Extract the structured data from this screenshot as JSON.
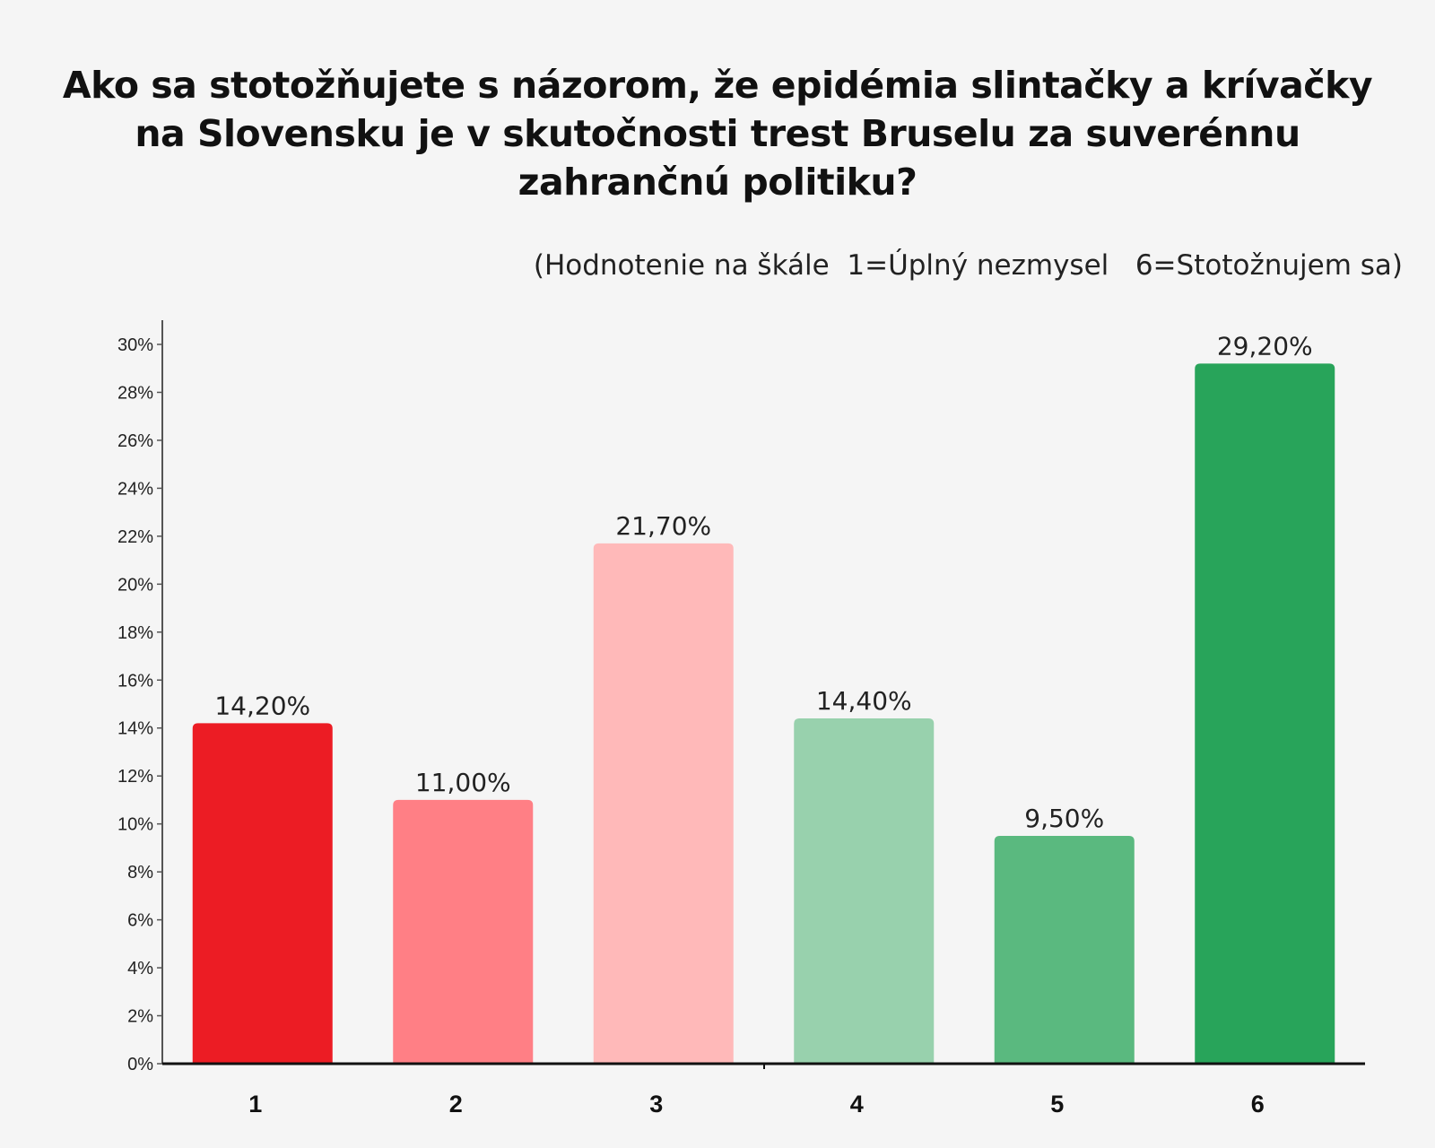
{
  "title": "Ako sa stotožňujete s názorom, že epidémia slintačky a krívačky na Slovensku je v skutočnosti trest Bruselu za suverénnu zahrančnú politiku?",
  "subtitle": "(Hodnotenie na škále  1=Úplný nezmysel   6=Stotožnujem sa)",
  "chart_data": {
    "type": "bar",
    "title": "Ako sa stotožňujete s názorom, že epidémia slintačky a krívačky na Slovensku je v skutočnosti trest Bruselu za suverénnu zahrančnú politiku?",
    "subtitle": "(Hodnotenie na škále  1=Úplný nezmysel   6=Stotožnujem sa)",
    "xlabel": "",
    "ylabel": "",
    "categories": [
      "1",
      "2",
      "3",
      "4",
      "5",
      "6"
    ],
    "values": [
      14.2,
      11.0,
      21.7,
      14.4,
      9.5,
      29.2
    ],
    "value_labels": [
      "14,20%",
      "11,00%",
      "21,70%",
      "14,40%",
      "9,50%",
      "29,20%"
    ],
    "bar_colors": [
      "#ec1c24",
      "#ff7f85",
      "#ffb9b9",
      "#98d1ad",
      "#5ab97f",
      "#28a45a"
    ],
    "ylim": [
      0,
      30
    ],
    "yticks": [
      0,
      2,
      4,
      6,
      8,
      10,
      12,
      14,
      16,
      18,
      20,
      22,
      24,
      26,
      28,
      30
    ],
    "ytick_labels": [
      "0%",
      "2%",
      "4%",
      "6%",
      "8%",
      "10%",
      "12%",
      "14%",
      "16%",
      "18%",
      "20%",
      "22%",
      "24%",
      "26%",
      "28%",
      "30%"
    ],
    "grid": false,
    "legend": "none"
  }
}
